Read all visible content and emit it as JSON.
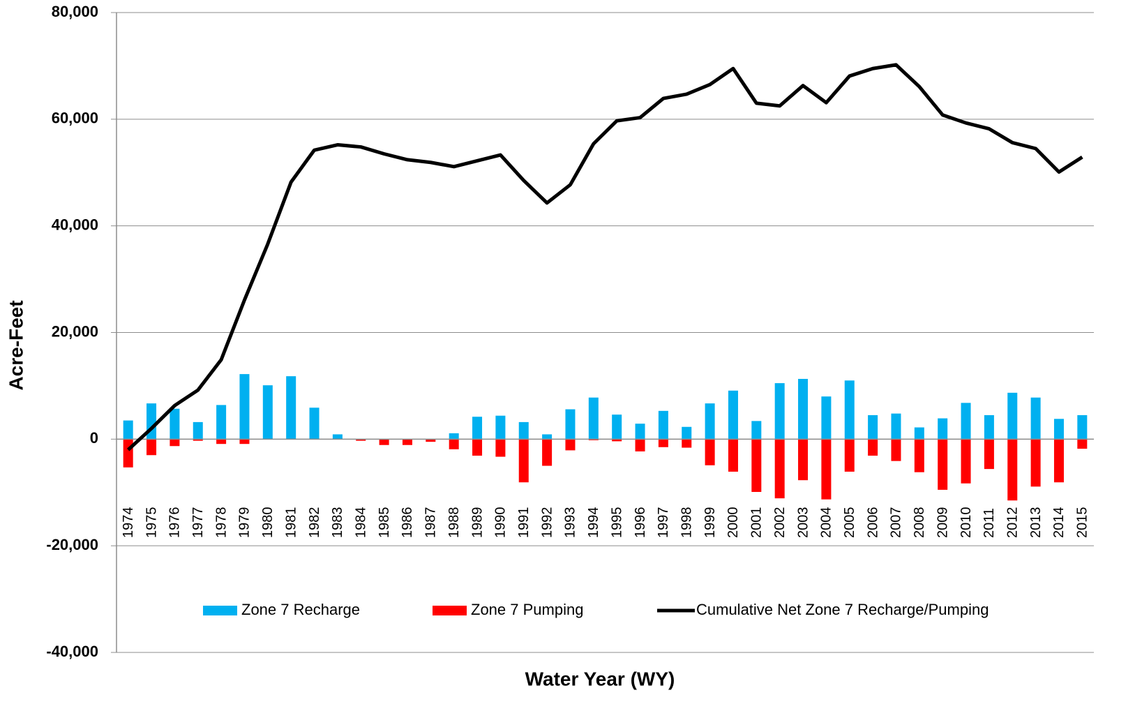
{
  "chart_data": {
    "type": "bar_line",
    "x_label": "Water Year (WY)",
    "y_label": "Acre-Feet",
    "categories": [
      "1974",
      "1975",
      "1976",
      "1977",
      "1978",
      "1979",
      "1980",
      "1981",
      "1982",
      "1983",
      "1984",
      "1985",
      "1986",
      "1987",
      "1988",
      "1989",
      "1990",
      "1991",
      "1992",
      "1993",
      "1994",
      "1995",
      "1996",
      "1997",
      "1998",
      "1999",
      "2000",
      "2001",
      "2002",
      "2003",
      "2004",
      "2005",
      "2006",
      "2007",
      "2008",
      "2009",
      "2010",
      "2011",
      "2012",
      "2013",
      "2014",
      "2015"
    ],
    "series": [
      {
        "name": "Zone 7 Recharge",
        "type": "bar",
        "color": "#00b0f0",
        "values": [
          3500,
          6700,
          5700,
          3200,
          6400,
          12200,
          10100,
          11800,
          5900,
          900,
          0,
          0,
          0,
          0,
          1100,
          4200,
          4400,
          3200,
          900,
          5600,
          7800,
          4600,
          2900,
          5300,
          2300,
          6700,
          9100,
          3400,
          10500,
          11300,
          8000,
          11000,
          4500,
          4800,
          2200,
          3900,
          6800,
          4500,
          8700,
          7800,
          3800,
          4500
        ]
      },
      {
        "name": "Zone 7 Pumping",
        "type": "bar",
        "color": "#ff0000",
        "values": [
          -5300,
          -3000,
          -1300,
          -300,
          -900,
          -900,
          0,
          0,
          0,
          0,
          -300,
          -1100,
          -1100,
          -500,
          -1900,
          -3100,
          -3300,
          -8100,
          -5000,
          -2100,
          -200,
          -400,
          -2300,
          -1500,
          -1600,
          -4900,
          -6100,
          -9900,
          -11100,
          -7700,
          -11300,
          -6100,
          -3100,
          -4100,
          -6200,
          -9500,
          -8300,
          -5600,
          -11500,
          -8900,
          -8100,
          -1800
        ]
      },
      {
        "name": "Cumulative Net Zone 7 Recharge/Pumping",
        "type": "line",
        "color": "#000000",
        "values": [
          -2000,
          2000,
          6300,
          9200,
          14900,
          26100,
          36600,
          48200,
          54200,
          55200,
          54800,
          53500,
          52400,
          51900,
          51100,
          52200,
          53300,
          48500,
          44300,
          47700,
          55400,
          59700,
          60300,
          63900,
          64700,
          66500,
          69500,
          63000,
          62500,
          66300,
          63100,
          68100,
          69500,
          70200,
          66100,
          60800,
          59300,
          58200,
          55600,
          54500,
          50100,
          52900
        ]
      }
    ],
    "ylim": [
      -40000,
      80000
    ],
    "yticks": [
      {
        "value": -40000,
        "label": "-40,000"
      },
      {
        "value": -20000,
        "label": "-20,000"
      },
      0,
      {
        "value": 20000,
        "label": "20,000"
      },
      {
        "value": 40000,
        "label": "40,000"
      },
      {
        "value": 60000,
        "label": "60,000"
      },
      {
        "value": 80000,
        "label": "80,000"
      }
    ],
    "grid": true,
    "legend": "bottom"
  }
}
